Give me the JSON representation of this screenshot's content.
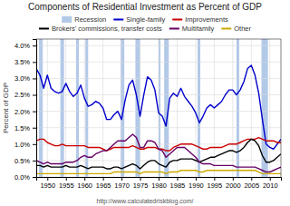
{
  "chart_data": {
    "type": "line",
    "title": "Components of Residential Investment as Percent of GDP",
    "ylabel": "Percent of GDP",
    "annotations": [
      "http://www.calculatedriskblog.com/"
    ],
    "grid": true,
    "legend": "top",
    "xlim": [
      1947,
      2013
    ],
    "xticks": [
      1950,
      1955,
      1960,
      1965,
      1970,
      1975,
      1980,
      1985,
      1990,
      1995,
      2000,
      2005,
      2010
    ],
    "ylim": [
      0.0,
      0.042
    ],
    "yticks": [
      {
        "value": 0.0,
        "label": "0.0%"
      },
      {
        "value": 0.005,
        "label": "0.5%"
      },
      {
        "value": 0.01,
        "label": "1.0%"
      },
      {
        "value": 0.015,
        "label": "1.5%"
      },
      {
        "value": 0.02,
        "label": "2.0%"
      },
      {
        "value": 0.025,
        "label": "2.5%"
      },
      {
        "value": 0.03,
        "label": "3.0%"
      },
      {
        "value": 0.035,
        "label": "3.5%"
      },
      {
        "value": 0.04,
        "label": "4.0%"
      }
    ],
    "recessions": {
      "name": "Recession",
      "color": "#b3c9e8",
      "spans": [
        [
          1947.75,
          1948.75
        ],
        [
          1953.5,
          1954.5
        ],
        [
          1957.75,
          1958.5
        ],
        [
          1960.25,
          1961.0
        ],
        [
          1969.75,
          1970.75
        ],
        [
          1973.75,
          1975.0
        ],
        [
          1980.0,
          1980.5
        ],
        [
          1981.5,
          1982.75
        ],
        [
          1990.5,
          1991.25
        ],
        [
          2001.0,
          2001.75
        ],
        [
          2007.75,
          2009.5
        ]
      ]
    },
    "x": [
      1947,
      1948,
      1949,
      1950,
      1951,
      1952,
      1953,
      1954,
      1955,
      1956,
      1957,
      1958,
      1959,
      1960,
      1961,
      1962,
      1963,
      1964,
      1965,
      1966,
      1967,
      1968,
      1969,
      1970,
      1971,
      1972,
      1973,
      1974,
      1975,
      1976,
      1977,
      1978,
      1979,
      1980,
      1981,
      1982,
      1983,
      1984,
      1985,
      1986,
      1987,
      1988,
      1989,
      1990,
      1991,
      1992,
      1993,
      1994,
      1995,
      1996,
      1997,
      1998,
      1999,
      2000,
      2001,
      2002,
      2003,
      2004,
      2005,
      2006,
      2007,
      2008,
      2009,
      2010,
      2011,
      2012,
      2013
    ],
    "series": [
      {
        "name": "Single-family",
        "color": "#0000cc",
        "values": [
          0.033,
          0.031,
          0.027,
          0.031,
          0.027,
          0.026,
          0.0255,
          0.026,
          0.0285,
          0.026,
          0.0245,
          0.0255,
          0.028,
          0.024,
          0.0215,
          0.022,
          0.023,
          0.0225,
          0.021,
          0.0175,
          0.0175,
          0.019,
          0.02,
          0.0175,
          0.0235,
          0.028,
          0.0295,
          0.025,
          0.0185,
          0.025,
          0.0305,
          0.0295,
          0.0265,
          0.0195,
          0.0185,
          0.0155,
          0.024,
          0.0255,
          0.0245,
          0.027,
          0.0245,
          0.023,
          0.0215,
          0.0195,
          0.0165,
          0.0185,
          0.021,
          0.022,
          0.021,
          0.022,
          0.023,
          0.025,
          0.0265,
          0.0265,
          0.025,
          0.0265,
          0.029,
          0.033,
          0.034,
          0.031,
          0.0255,
          0.0175,
          0.01,
          0.009,
          0.0085,
          0.01,
          0.0115
        ]
      },
      {
        "name": "Improvements",
        "color": "#cc0000",
        "values": [
          0.011,
          0.0115,
          0.0115,
          0.0105,
          0.01,
          0.0095,
          0.0095,
          0.01,
          0.0095,
          0.0095,
          0.0095,
          0.0095,
          0.0095,
          0.0095,
          0.009,
          0.009,
          0.009,
          0.009,
          0.0085,
          0.008,
          0.0085,
          0.009,
          0.009,
          0.009,
          0.009,
          0.009,
          0.0095,
          0.009,
          0.0085,
          0.0085,
          0.009,
          0.009,
          0.009,
          0.0085,
          0.0085,
          0.008,
          0.008,
          0.009,
          0.0095,
          0.01,
          0.01,
          0.01,
          0.01,
          0.0095,
          0.009,
          0.0085,
          0.0085,
          0.009,
          0.009,
          0.009,
          0.009,
          0.0095,
          0.01,
          0.01,
          0.01,
          0.0105,
          0.011,
          0.0115,
          0.0115,
          0.0115,
          0.012,
          0.0115,
          0.011,
          0.011,
          0.011,
          0.0105,
          0.0105
        ]
      },
      {
        "name": "Brokers' commissions, transfer costs",
        "color": "#000000",
        "values": [
          0.0035,
          0.0035,
          0.003,
          0.0035,
          0.003,
          0.003,
          0.003,
          0.003,
          0.0035,
          0.003,
          0.003,
          0.003,
          0.0035,
          0.003,
          0.0025,
          0.003,
          0.003,
          0.003,
          0.003,
          0.0025,
          0.0025,
          0.003,
          0.003,
          0.0025,
          0.003,
          0.0035,
          0.004,
          0.0035,
          0.0025,
          0.0035,
          0.0045,
          0.005,
          0.005,
          0.004,
          0.0035,
          0.003,
          0.0045,
          0.005,
          0.005,
          0.0055,
          0.0055,
          0.0055,
          0.0055,
          0.005,
          0.0045,
          0.005,
          0.0055,
          0.006,
          0.006,
          0.0065,
          0.007,
          0.0075,
          0.008,
          0.008,
          0.0075,
          0.008,
          0.009,
          0.0105,
          0.0115,
          0.011,
          0.0095,
          0.0065,
          0.0045,
          0.0045,
          0.005,
          0.006,
          0.007
        ]
      },
      {
        "name": "Multifamily",
        "color": "#660066",
        "values": [
          0.005,
          0.0045,
          0.004,
          0.0045,
          0.004,
          0.004,
          0.004,
          0.004,
          0.0045,
          0.0045,
          0.0045,
          0.005,
          0.006,
          0.0065,
          0.006,
          0.006,
          0.007,
          0.0075,
          0.008,
          0.008,
          0.009,
          0.01,
          0.011,
          0.011,
          0.011,
          0.012,
          0.013,
          0.012,
          0.009,
          0.009,
          0.011,
          0.011,
          0.0105,
          0.0085,
          0.008,
          0.006,
          0.007,
          0.008,
          0.009,
          0.009,
          0.009,
          0.008,
          0.007,
          0.006,
          0.0045,
          0.004,
          0.004,
          0.004,
          0.0035,
          0.0035,
          0.0035,
          0.0035,
          0.0035,
          0.0035,
          0.003,
          0.003,
          0.003,
          0.003,
          0.003,
          0.003,
          0.0025,
          0.002,
          0.0015,
          0.0015,
          0.002,
          0.0025,
          0.003
        ]
      },
      {
        "name": "Other",
        "color": "#ccaa00",
        "values": [
          0.001,
          0.001,
          0.001,
          0.001,
          0.001,
          0.001,
          0.001,
          0.001,
          0.001,
          0.001,
          0.001,
          0.001,
          0.001,
          0.001,
          0.001,
          0.001,
          0.001,
          0.001,
          0.001,
          0.001,
          0.001,
          0.0015,
          0.0015,
          0.0015,
          0.0015,
          0.0015,
          0.0015,
          0.0015,
          0.001,
          0.0015,
          0.0015,
          0.0015,
          0.0015,
          0.0015,
          0.0015,
          0.001,
          0.0015,
          0.0015,
          0.0015,
          0.002,
          0.002,
          0.002,
          0.002,
          0.002,
          0.0015,
          0.0015,
          0.002,
          0.002,
          0.002,
          0.002,
          0.002,
          0.002,
          0.002,
          0.002,
          0.002,
          0.002,
          0.002,
          0.002,
          0.002,
          0.002,
          0.0015,
          0.001,
          0.001,
          0.001,
          0.001,
          0.001,
          0.001
        ]
      }
    ]
  }
}
